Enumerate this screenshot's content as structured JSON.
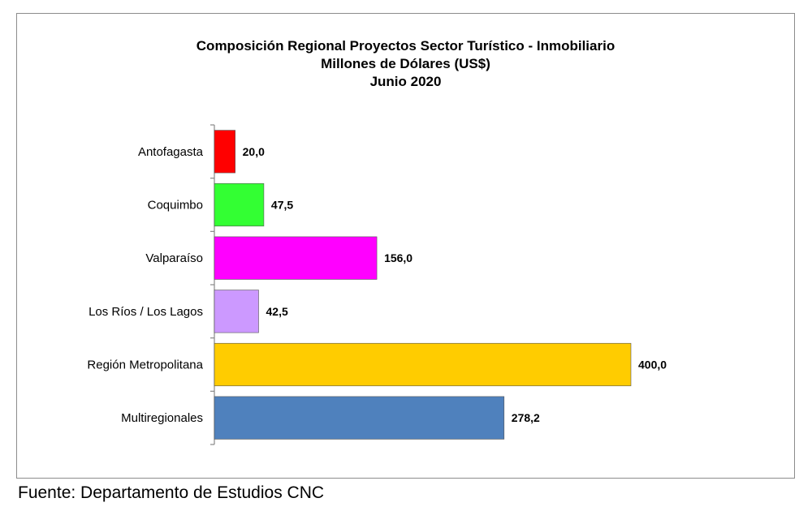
{
  "chart_data": {
    "type": "bar",
    "orientation": "horizontal",
    "title": "Composición Regional Proyectos Sector Turístico - Inmobiliario",
    "subtitle_lines": [
      "Millones de Dólares (US$)",
      "Junio 2020"
    ],
    "categories": [
      "Antofagasta",
      "Coquimbo",
      "Valparaíso",
      "Los  Ríos / Los Lagos",
      "Región Metropolitana",
      "Multiregionales"
    ],
    "values": [
      20.0,
      47.5,
      156.0,
      42.5,
      400.0,
      278.2
    ],
    "value_labels": [
      "20,0",
      "47,5",
      "156,0",
      "42,5",
      "400,0",
      "278,2"
    ],
    "colors": [
      "#ff0000",
      "#33ff33",
      "#ff00ff",
      "#cc99ff",
      "#ffcc00",
      "#4f81bd"
    ],
    "xlim": [
      0,
      400
    ],
    "grid": false,
    "legend": "none"
  },
  "source_note": "Fuente: Departamento de Estudios CNC"
}
